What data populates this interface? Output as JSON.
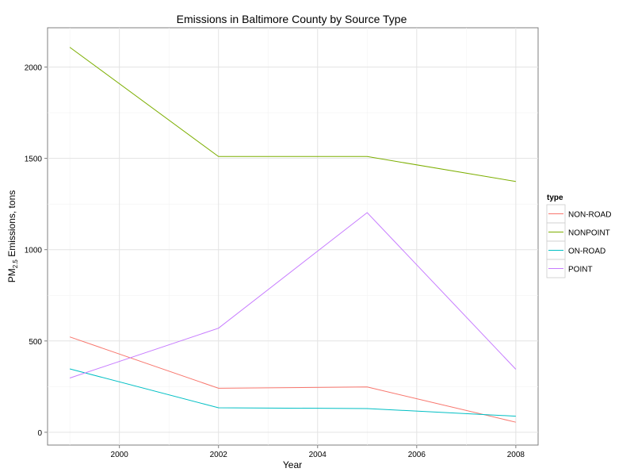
{
  "chart_data": {
    "type": "line",
    "title": "Emissions in Baltimore County by Source Type",
    "xlabel": "Year",
    "ylabel_main": "PM",
    "ylabel_sub": "2.5",
    "ylabel_tail": " Emissions, tons",
    "x": [
      1999,
      2002,
      2005,
      2008
    ],
    "xlim": [
      1998.55,
      2008.45
    ],
    "ylim": [
      -70,
      2215
    ],
    "x_ticks": [
      2000,
      2002,
      2004,
      2006,
      2008
    ],
    "y_ticks": [
      0,
      500,
      1000,
      1500,
      2000
    ],
    "y_minor": [
      250,
      750,
      1250,
      1750
    ],
    "x_minor": [
      1999,
      2001,
      2003,
      2005,
      2007
    ],
    "grid": true,
    "legend_title": "type",
    "legend_position": "right",
    "series": [
      {
        "name": "NON-ROAD",
        "color": "#F8766D",
        "values": [
          522,
          241,
          248,
          55
        ]
      },
      {
        "name": "NONPOINT",
        "color": "#7CAE00",
        "values": [
          2108,
          1510,
          1510,
          1373
        ]
      },
      {
        "name": "ON-ROAD",
        "color": "#00BFC4",
        "values": [
          347,
          134,
          130,
          88
        ]
      },
      {
        "name": "POINT",
        "color": "#C77CFF",
        "values": [
          297,
          570,
          1203,
          345
        ]
      }
    ]
  }
}
